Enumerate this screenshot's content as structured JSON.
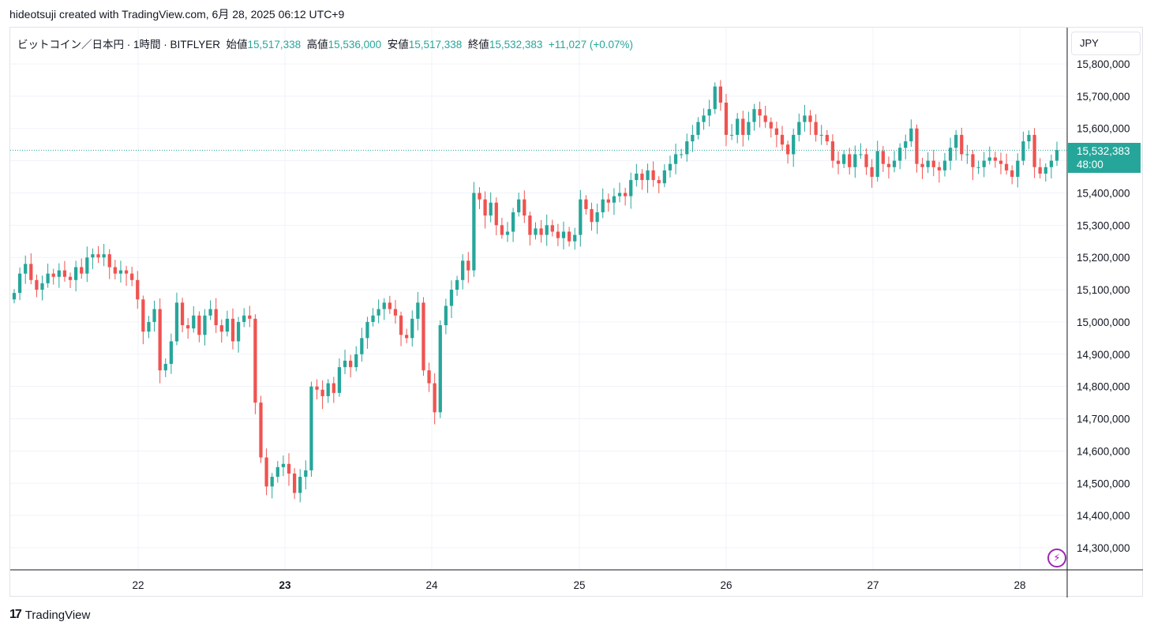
{
  "header": {
    "text": "hideotsuji created with TradingView.com, 6月 28, 2025 06:12 UTC+9"
  },
  "legend": {
    "symbol": "ビットコイン／日本円 · 1時間 · BITFLYER",
    "open_label": "始値",
    "open": "15,517,338",
    "high_label": "高値",
    "high": "15,536,000",
    "low_label": "安値",
    "low": "15,517,338",
    "close_label": "終値",
    "close": "15,532,383",
    "change": "+11,027 (+0.07%)"
  },
  "price_scale": {
    "currency": "JPY",
    "current_price": "15,532,383",
    "countdown": "48:00"
  },
  "footer": {
    "brand": "TradingView",
    "logo_icon": "tradingview-logo-icon"
  },
  "colors": {
    "up": "#26a69a",
    "down": "#ef5350",
    "grid": "#f0f3fa",
    "axis_text": "#131722"
  },
  "chart_data": {
    "type": "candlestick",
    "y_axis": {
      "min": 14250000,
      "max": 15850000,
      "ticks": [
        15800000,
        15700000,
        15600000,
        15500000,
        15400000,
        15300000,
        15200000,
        15100000,
        15000000,
        14900000,
        14800000,
        14700000,
        14600000,
        14500000,
        14400000,
        14300000
      ],
      "tick_labels": [
        "15,800,000",
        "15,700,000",
        "15,600,000",
        "",
        "15,400,000",
        "15,300,000",
        "15,200,000",
        "15,100,000",
        "15,000,000",
        "14,900,000",
        "14,800,000",
        "14,700,000",
        "14,600,000",
        "14,500,000",
        "14,400,000",
        "14,300,000"
      ]
    },
    "x_axis": {
      "labels": [
        "22",
        "23",
        "24",
        "25",
        "26",
        "27",
        "28"
      ],
      "bold": [
        false,
        true,
        false,
        false,
        false,
        false,
        false
      ]
    },
    "grid": true,
    "current_price": 15532383,
    "closes": [
      15090000,
      15150000,
      15180000,
      15130000,
      15100000,
      15120000,
      15150000,
      15140000,
      15160000,
      15140000,
      15130000,
      15170000,
      15150000,
      15200000,
      15210000,
      15200000,
      15210000,
      15170000,
      15150000,
      15160000,
      15150000,
      15130000,
      15070000,
      14970000,
      15000000,
      15040000,
      14850000,
      14870000,
      14940000,
      15060000,
      14990000,
      14980000,
      15020000,
      14960000,
      15020000,
      15040000,
      14990000,
      14970000,
      15010000,
      14940000,
      15000000,
      15020000,
      15010000,
      14750000,
      14580000,
      14490000,
      14520000,
      14550000,
      14560000,
      14530000,
      14470000,
      14520000,
      14540000,
      14800000,
      14790000,
      14770000,
      14810000,
      14780000,
      14860000,
      14880000,
      14860000,
      14900000,
      14950000,
      15000000,
      15020000,
      15040000,
      15060000,
      15040000,
      15020000,
      14960000,
      14950000,
      15010000,
      15060000,
      14850000,
      14810000,
      14720000,
      14990000,
      15050000,
      15100000,
      15130000,
      15190000,
      15160000,
      15400000,
      15380000,
      15330000,
      15370000,
      15300000,
      15270000,
      15280000,
      15340000,
      15380000,
      15330000,
      15270000,
      15290000,
      15270000,
      15300000,
      15280000,
      15260000,
      15280000,
      15250000,
      15270000,
      15380000,
      15350000,
      15310000,
      15340000,
      15380000,
      15370000,
      15390000,
      15400000,
      15390000,
      15440000,
      15460000,
      15440000,
      15470000,
      15440000,
      15430000,
      15470000,
      15490000,
      15520000,
      15520000,
      15560000,
      15580000,
      15620000,
      15640000,
      15660000,
      15730000,
      15680000,
      15580000,
      15580000,
      15630000,
      15580000,
      15620000,
      15660000,
      15640000,
      15620000,
      15600000,
      15580000,
      15550000,
      15520000,
      15580000,
      15620000,
      15640000,
      15620000,
      15580000,
      15580000,
      15560000,
      15500000,
      15490000,
      15520000,
      15480000,
      15520000,
      15520000,
      15480000,
      15450000,
      15530000,
      15490000,
      15480000,
      15500000,
      15540000,
      15560000,
      15600000,
      15490000,
      15480000,
      15500000,
      15480000,
      15470000,
      15500000,
      15540000,
      15580000,
      15520000,
      15520000,
      15480000,
      15480000,
      15500000,
      15510000,
      15500000,
      15490000,
      15470000,
      15450000,
      15500000,
      15560000,
      15580000,
      15480000,
      15460000,
      15480000,
      15500000,
      15533000
    ]
  }
}
